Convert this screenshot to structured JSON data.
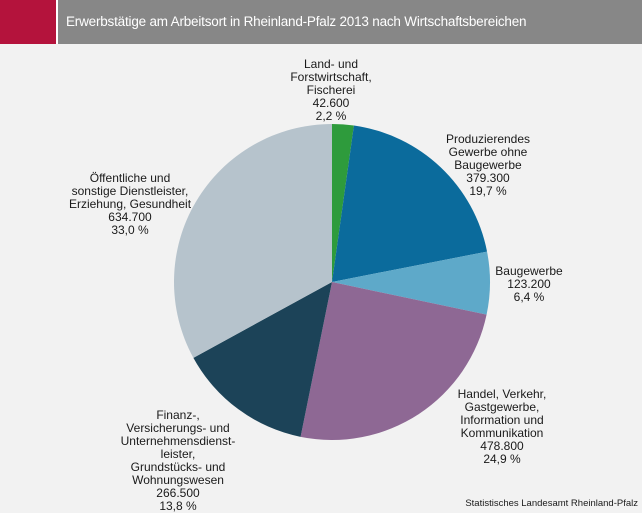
{
  "header": {
    "title": "Erwerbstätige am Arbeitsort in Rheinland-Pfalz 2013 nach Wirtschaftsbereichen"
  },
  "chart_data": {
    "type": "pie",
    "title": "Erwerbstätige am Arbeitsort in Rheinland-Pfalz 2013 nach Wirtschaftsbereichen",
    "start": "12 o'clock",
    "direction": "clockwise",
    "slices": [
      {
        "label_lines": [
          "Land- und",
          "Forstwirtschaft,",
          "Fischerei"
        ],
        "value_text": "42.600",
        "pct_text": "2,2 %",
        "value": 42600,
        "percent": 2.2,
        "color": "#2e9b3c"
      },
      {
        "label_lines": [
          "Produzierendes",
          "Gewerbe ohne",
          "Baugewerbe"
        ],
        "value_text": "379.300",
        "pct_text": "19,7 %",
        "value": 379300,
        "percent": 19.7,
        "color": "#0b6b9c"
      },
      {
        "label_lines": [
          "Baugewerbe"
        ],
        "value_text": "123.200",
        "pct_text": "6,4 %",
        "value": 123200,
        "percent": 6.4,
        "color": "#5ea9c9"
      },
      {
        "label_lines": [
          "Handel, Verkehr,",
          "Gastgewerbe,",
          "Information und",
          "Kommunikation"
        ],
        "value_text": "478.800",
        "pct_text": "24,9 %",
        "value": 478800,
        "percent": 24.9,
        "color": "#8e6894"
      },
      {
        "label_lines": [
          "Finanz-,",
          "Versicherungs- und",
          "Unternehmensdienst-",
          "leister,",
          "Grundstücks- und",
          "Wohnungswesen"
        ],
        "value_text": "266.500",
        "pct_text": "13,8 %",
        "value": 266500,
        "percent": 13.8,
        "color": "#1c4358"
      },
      {
        "label_lines": [
          "Öffentliche und",
          "sonstige Dienstleister,",
          "Erziehung, Gesundheit"
        ],
        "value_text": "634.700",
        "pct_text": "33,0 %",
        "value": 634700,
        "percent": 33.0,
        "color": "#b6c3cc"
      }
    ]
  },
  "footer": {
    "source": "Statistisches Landesamt Rheinland-Pfalz"
  }
}
